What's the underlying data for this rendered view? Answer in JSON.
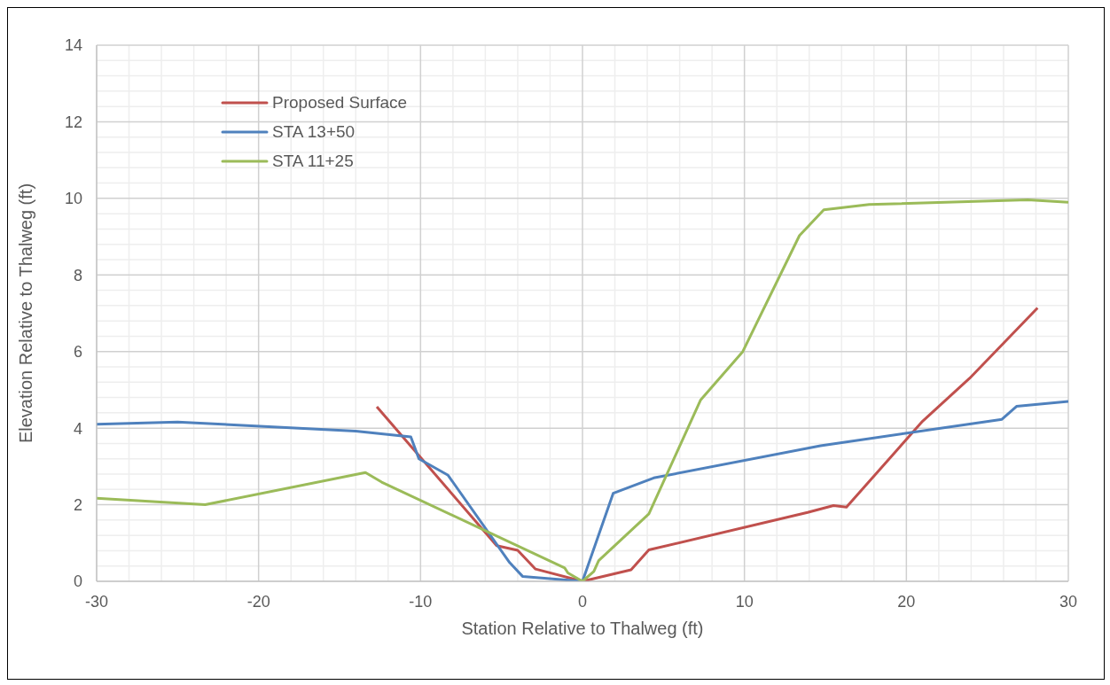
{
  "chart_data": {
    "type": "line",
    "xlabel": "Station Relative to Thalweg (ft)",
    "ylabel": "Elevation Relative to Thalweg (ft)",
    "xlim": [
      -30,
      30
    ],
    "xticks": [
      -30,
      -20,
      -10,
      0,
      10,
      20,
      30
    ],
    "ylim": [
      0,
      14
    ],
    "yticks": [
      0,
      2,
      4,
      6,
      8,
      10,
      12,
      14
    ],
    "grid": true,
    "legend": "top left",
    "marker": "none",
    "line_style": "solid",
    "series": [
      {
        "name": "Proposed Surface",
        "color": "#c0504d",
        "x": [
          -12.7,
          -5.3,
          -4.0,
          -2.9,
          0,
          3.0,
          4.1,
          13.9,
          15.5,
          16.3,
          21.0,
          23.9,
          28.1
        ],
        "values": [
          4.56,
          0.93,
          0.81,
          0.32,
          0,
          0.3,
          0.82,
          1.8,
          1.98,
          1.94,
          4.18,
          5.3,
          7.14
        ]
      },
      {
        "name": "STA 13+50",
        "color": "#4f81bd",
        "x": [
          -30,
          -25,
          -14,
          -10.6,
          -10.1,
          -8.3,
          -4.5,
          -3.7,
          0,
          1.9,
          4.4,
          14.7,
          25.9,
          26.8,
          30
        ],
        "values": [
          4.1,
          4.16,
          3.92,
          3.77,
          3.2,
          2.77,
          0.49,
          0.13,
          0,
          2.3,
          2.7,
          3.54,
          4.23,
          4.57,
          4.7
        ]
      },
      {
        "name": "STA 11+25",
        "color": "#9bbb59",
        "x": [
          -30,
          -23.3,
          -13.4,
          -12.4,
          -1.1,
          -0.9,
          0,
          0.7,
          1.0,
          4.1,
          7.3,
          9.9,
          13.4,
          14.9,
          17.7,
          27.5,
          30
        ],
        "values": [
          2.17,
          2.0,
          2.84,
          2.59,
          0.35,
          0.22,
          0,
          0.26,
          0.54,
          1.76,
          4.74,
          6.0,
          9.03,
          9.7,
          9.84,
          9.96,
          9.9
        ]
      }
    ]
  }
}
